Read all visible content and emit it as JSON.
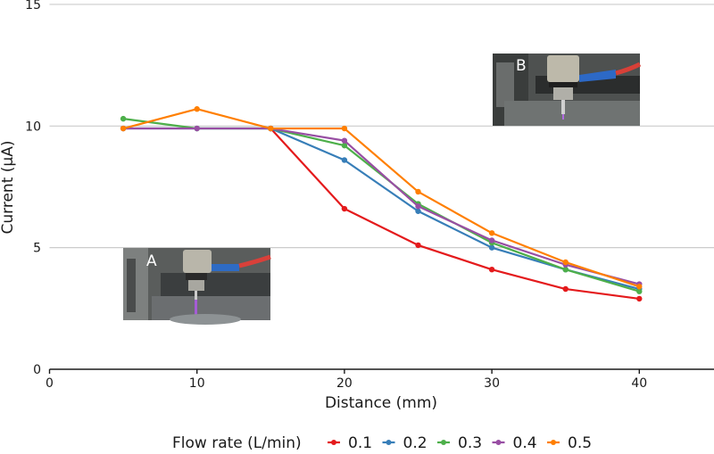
{
  "chart_data": {
    "type": "line",
    "title": "",
    "xlabel": "Distance (mm)",
    "ylabel": "Current (μA)",
    "xlim": [
      0,
      45
    ],
    "ylim": [
      0,
      15
    ],
    "xticks": [
      0,
      10,
      20,
      30,
      40
    ],
    "yticks": [
      0,
      5,
      10,
      15
    ],
    "xtick_labels": [
      "0",
      "10",
      "20",
      "30",
      "40"
    ],
    "ytick_labels": [
      "0",
      "5",
      "10",
      "15"
    ],
    "grid": "horizontal",
    "legend": {
      "title": "Flow rate (L/min)",
      "position": "bottom"
    },
    "x": [
      5,
      10,
      15,
      20,
      25,
      30,
      35,
      40
    ],
    "series": [
      {
        "name": "0.1",
        "color": "#e41a1c",
        "values": [
          null,
          null,
          9.9,
          6.6,
          5.1,
          4.1,
          3.3,
          2.9
        ]
      },
      {
        "name": "0.2",
        "color": "#377eb8",
        "values": [
          9.9,
          9.9,
          9.9,
          8.6,
          6.5,
          5.0,
          4.1,
          3.3
        ]
      },
      {
        "name": "0.3",
        "color": "#4daf4a",
        "values": [
          10.3,
          9.9,
          9.9,
          9.2,
          6.8,
          5.2,
          4.1,
          3.2
        ]
      },
      {
        "name": "0.4",
        "color": "#984ea3",
        "values": [
          9.9,
          9.9,
          9.9,
          9.4,
          6.7,
          5.3,
          4.3,
          3.5
        ]
      },
      {
        "name": "0.5",
        "color": "#ff7f00",
        "values": [
          9.9,
          10.7,
          9.9,
          9.9,
          7.3,
          5.6,
          4.4,
          3.4
        ]
      }
    ],
    "annotations": [
      {
        "label": "A",
        "kind": "inset-photo",
        "description_x": 10,
        "description_y": 4
      },
      {
        "label": "B",
        "kind": "inset-photo",
        "description_x": 35,
        "description_y": 12
      }
    ]
  },
  "insets": {
    "a_label": "A",
    "b_label": "B"
  }
}
